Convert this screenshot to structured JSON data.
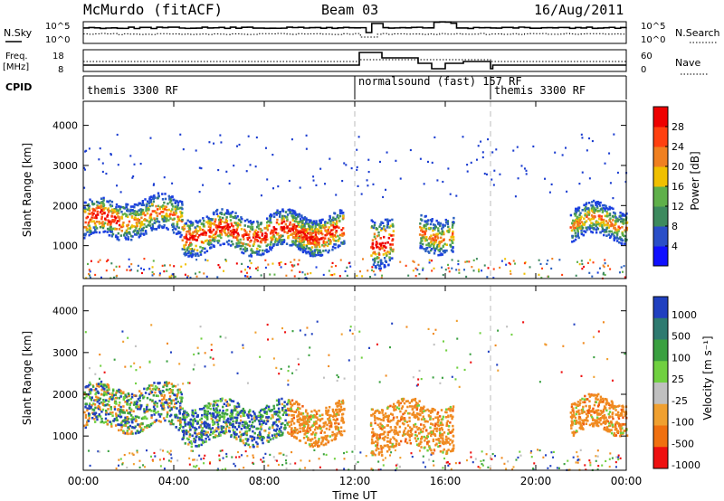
{
  "header": {
    "station": "McMurdo (fitACF)",
    "beam": "Beam 03",
    "date": "16/Aug/2011"
  },
  "status_panels": {
    "nsky_label": "N.Sky",
    "nsearch_label": "N.Search",
    "noise_ticks": [
      "10^5",
      "10^0"
    ],
    "freq_label_line1": "Freq.",
    "freq_label_line2": "[MHz]",
    "freq_ticks": [
      "18",
      "8"
    ],
    "nave_label": "Nave",
    "nave_ticks": [
      "60",
      "0"
    ],
    "cpid_label": "CPID",
    "cpid_segments": [
      "themis 3300 RF",
      "normalsound (fast) 157 RF",
      "themis 3300 RF"
    ]
  },
  "chart_data": [
    {
      "type": "heatmap",
      "title": "",
      "ylabel": "Slant Range [km]",
      "xlabel": "",
      "xlim": [
        "00:00",
        "24:00"
      ],
      "ylim": [
        180,
        4600
      ],
      "yticks": [
        "1000",
        "2000",
        "3000",
        "4000"
      ],
      "colorbar": {
        "label": "Power [dB]",
        "ticks": [
          "4",
          "8",
          "12",
          "16",
          "20",
          "24",
          "28"
        ],
        "range": [
          0,
          30
        ],
        "colors": [
          "#1010ff",
          "#2a4ec8",
          "#3d8a5e",
          "#5fb04a",
          "#f0c000",
          "#f08020",
          "#ff4010",
          "#ee0000"
        ]
      },
      "echo_regions": [
        {
          "t_start": "00:00",
          "t_end": "01:40",
          "range_km": [
            1200,
            2100
          ],
          "level": "high"
        },
        {
          "t_start": "01:40",
          "t_end": "04:20",
          "range_km": [
            1300,
            2200
          ],
          "level": "medium"
        },
        {
          "t_start": "04:20",
          "t_end": "10:30",
          "range_km": [
            900,
            1800
          ],
          "level": "high"
        },
        {
          "t_start": "09:10",
          "t_end": "11:30",
          "range_km": [
            900,
            1800
          ],
          "level": "high"
        },
        {
          "t_start": "12:40",
          "t_end": "13:40",
          "range_km": [
            600,
            1800
          ],
          "level": "high"
        },
        {
          "t_start": "14:50",
          "t_end": "16:20",
          "range_km": [
            900,
            1800
          ],
          "level": "medium"
        },
        {
          "t_start": "21:30",
          "t_end": "24:00",
          "range_km": [
            1200,
            2000
          ],
          "level": "medium"
        }
      ]
    },
    {
      "type": "heatmap",
      "title": "",
      "ylabel": "Slant Range [km]",
      "xlabel": "Time UT",
      "xlim": [
        "00:00",
        "24:00"
      ],
      "xticks": [
        "00:00",
        "04:00",
        "08:00",
        "12:00",
        "16:00",
        "20:00",
        "00:00"
      ],
      "ylim": [
        180,
        4600
      ],
      "yticks": [
        "1000",
        "2000",
        "3000",
        "4000"
      ],
      "colorbar": {
        "label": "Velocity [m s⁻¹]",
        "ticks": [
          "1000",
          "500",
          "100",
          "25",
          "-25",
          "-100",
          "-500",
          "-1000"
        ],
        "colors": [
          "#2040c0",
          "#2e7a70",
          "#3aa040",
          "#70d040",
          "#c0c0c0",
          "#f0a030",
          "#f07010",
          "#ee1010"
        ]
      },
      "echo_regions": [
        {
          "t_start": "00:00",
          "t_end": "04:20",
          "range_km": [
            1200,
            2200
          ],
          "velocity": "mixed"
        },
        {
          "t_start": "04:20",
          "t_end": "09:00",
          "range_km": [
            900,
            1800
          ],
          "velocity": "positive"
        },
        {
          "t_start": "09:00",
          "t_end": "11:30",
          "range_km": [
            900,
            1800
          ],
          "velocity": "negative"
        },
        {
          "t_start": "12:40",
          "t_end": "16:20",
          "range_km": [
            700,
            1800
          ],
          "velocity": "negative"
        },
        {
          "t_start": "21:30",
          "t_end": "24:00",
          "range_km": [
            1100,
            1900
          ],
          "velocity": "negative"
        }
      ]
    }
  ]
}
